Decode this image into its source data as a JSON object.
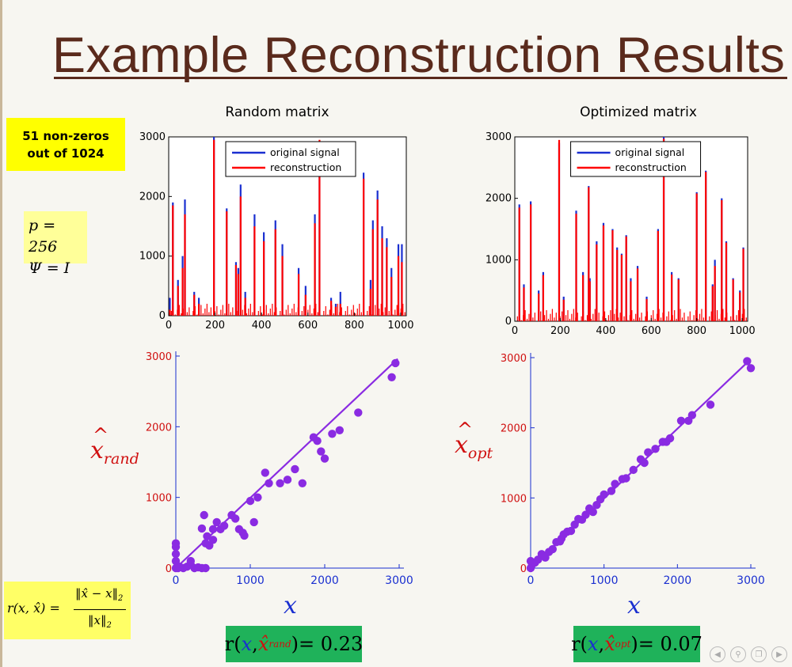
{
  "slide": {
    "title": "Example Reconstruction Results",
    "note_line1": "51 non-zeros",
    "note_line2": "out of 1024",
    "param_p": "p = 256",
    "param_psi": "Ψ = I",
    "formula_lhs": "r(x, x̂) =",
    "formula_num": "‖x̂ − x‖",
    "formula_num_sub": "2",
    "formula_den": "‖x‖",
    "formula_den_sub": "2",
    "x_axis_letter": "x",
    "ylab_rand_base": "x",
    "ylab_rand_sub": "rand",
    "ylab_opt_base": "x",
    "ylab_opt_sub": "opt",
    "r_rand": {
      "r": "r",
      "x": "x",
      "xhat": "x̂",
      "sub": "rand",
      "value": "= 0.23"
    },
    "r_opt": {
      "r": "r",
      "x": "x",
      "xhat": "x̂",
      "sub": "opt",
      "value": "= 0.07"
    }
  },
  "colors": {
    "title": "#5a2a1c",
    "original": "#1a2fd0",
    "reconstruction": "#ff0000",
    "scatter": "#8a2be2",
    "scatter_axis": "#1a2fd0",
    "scatter_tick": "#d01010"
  },
  "chart_data": [
    {
      "id": "random_signal",
      "type": "bar",
      "title": "Random matrix",
      "xlim": [
        0,
        1024
      ],
      "ylim": [
        0,
        3000
      ],
      "xticks": [
        "0",
        "200",
        "400",
        "600",
        "800",
        "1000"
      ],
      "yticks": [
        "0",
        "1000",
        "2000",
        "3000"
      ],
      "legend": [
        "original signal",
        "reconstruction"
      ],
      "legend_position": "top",
      "series": [
        {
          "name": "original signal",
          "x": [
            5,
            18,
            40,
            60,
            70,
            110,
            130,
            195,
            250,
            290,
            300,
            310,
            330,
            370,
            410,
            460,
            490,
            560,
            590,
            630,
            650,
            700,
            720,
            740,
            840,
            870,
            880,
            900,
            920,
            940,
            960,
            990,
            1005
          ],
          "values": [
            300,
            1900,
            600,
            1000,
            1950,
            400,
            300,
            3000,
            1800,
            900,
            800,
            2200,
            400,
            1700,
            1400,
            1600,
            1200,
            800,
            500,
            1700,
            2900,
            300,
            200,
            400,
            2400,
            600,
            1600,
            2100,
            1500,
            1300,
            800,
            1200,
            1200
          ]
        },
        {
          "name": "reconstruction",
          "x": [
            5,
            18,
            40,
            60,
            70,
            110,
            130,
            195,
            250,
            290,
            300,
            310,
            330,
            370,
            410,
            460,
            490,
            560,
            590,
            630,
            650,
            700,
            720,
            740,
            840,
            870,
            880,
            900,
            920,
            940,
            960,
            990,
            1005
          ],
          "values": [
            100,
            1850,
            500,
            800,
            1700,
            350,
            200,
            2950,
            1750,
            850,
            700,
            2000,
            300,
            1500,
            1250,
            1450,
            1000,
            700,
            350,
            1550,
            2950,
            250,
            150,
            200,
            2300,
            450,
            1450,
            1950,
            1300,
            1150,
            650,
            1000,
            900
          ]
        }
      ]
    },
    {
      "id": "optimized_signal",
      "type": "bar",
      "title": "Optimized matrix",
      "xlim": [
        0,
        1024
      ],
      "ylim": [
        0,
        3000
      ],
      "xticks": [
        "0",
        "200",
        "400",
        "600",
        "800",
        "1000"
      ],
      "yticks": [
        "0",
        "1000",
        "2000",
        "3000"
      ],
      "legend": [
        "original signal",
        "reconstruction"
      ],
      "legend_position": "top",
      "series": [
        {
          "name": "original signal",
          "x": [
            20,
            40,
            70,
            105,
            125,
            195,
            215,
            270,
            300,
            325,
            330,
            360,
            390,
            430,
            450,
            470,
            490,
            510,
            540,
            580,
            630,
            655,
            690,
            720,
            800,
            840,
            870,
            880,
            910,
            930,
            960,
            990,
            1005
          ],
          "values": [
            1900,
            600,
            1950,
            500,
            800,
            2900,
            400,
            1800,
            800,
            2200,
            700,
            1300,
            1600,
            1500,
            1200,
            1100,
            1400,
            700,
            900,
            400,
            1500,
            3000,
            800,
            700,
            2100,
            2450,
            600,
            1000,
            2000,
            1300,
            700,
            500,
            1200
          ]
        },
        {
          "name": "reconstruction",
          "x": [
            20,
            40,
            70,
            105,
            125,
            195,
            215,
            270,
            300,
            325,
            330,
            360,
            390,
            430,
            450,
            470,
            490,
            510,
            540,
            580,
            630,
            655,
            690,
            720,
            800,
            840,
            870,
            880,
            910,
            930,
            960,
            990,
            1005
          ],
          "values": [
            1850,
            550,
            1900,
            450,
            750,
            2950,
            350,
            1750,
            750,
            2180,
            650,
            1250,
            1560,
            1480,
            1160,
            1080,
            1380,
            650,
            860,
            360,
            1470,
            2970,
            760,
            680,
            2080,
            2430,
            570,
            900,
            1970,
            1280,
            680,
            470,
            1180
          ]
        }
      ]
    },
    {
      "id": "random_scatter",
      "type": "scatter",
      "xlim": [
        0,
        3000
      ],
      "ylim": [
        0,
        3000
      ],
      "xticks": [
        "0",
        "1000",
        "2000",
        "3000"
      ],
      "yticks": [
        "0",
        "1000",
        "2000",
        "3000"
      ],
      "fit_line": [
        [
          0,
          0
        ],
        [
          2980,
          2960
        ]
      ],
      "points": [
        [
          0,
          0
        ],
        [
          0,
          100
        ],
        [
          0,
          200
        ],
        [
          0,
          300
        ],
        [
          0,
          350
        ],
        [
          30,
          0
        ],
        [
          50,
          20
        ],
        [
          100,
          0
        ],
        [
          150,
          20
        ],
        [
          200,
          50
        ],
        [
          250,
          0
        ],
        [
          300,
          10
        ],
        [
          350,
          0
        ],
        [
          400,
          0
        ],
        [
          200,
          100
        ],
        [
          350,
          560
        ],
        [
          380,
          750
        ],
        [
          400,
          350
        ],
        [
          420,
          450
        ],
        [
          450,
          320
        ],
        [
          500,
          400
        ],
        [
          500,
          550
        ],
        [
          550,
          650
        ],
        [
          600,
          550
        ],
        [
          650,
          600
        ],
        [
          750,
          750
        ],
        [
          800,
          700
        ],
        [
          850,
          550
        ],
        [
          900,
          500
        ],
        [
          920,
          460
        ],
        [
          1000,
          950
        ],
        [
          1050,
          650
        ],
        [
          1100,
          1000
        ],
        [
          1200,
          1350
        ],
        [
          1250,
          1200
        ],
        [
          1400,
          1200
        ],
        [
          1500,
          1250
        ],
        [
          1600,
          1400
        ],
        [
          1700,
          1200
        ],
        [
          1850,
          1850
        ],
        [
          1900,
          1800
        ],
        [
          1950,
          1650
        ],
        [
          2000,
          1550
        ],
        [
          2100,
          1900
        ],
        [
          2200,
          1950
        ],
        [
          2450,
          2200
        ],
        [
          2900,
          2700
        ],
        [
          2950,
          2900
        ]
      ]
    },
    {
      "id": "optimized_scatter",
      "type": "scatter",
      "xlim": [
        0,
        3000
      ],
      "ylim": [
        0,
        3000
      ],
      "xticks": [
        "0",
        "1000",
        "2000",
        "3000"
      ],
      "yticks": [
        "0",
        "1000",
        "2000",
        "3000"
      ],
      "fit_line": [
        [
          0,
          0
        ],
        [
          2980,
          2960
        ]
      ],
      "points": [
        [
          0,
          0
        ],
        [
          0,
          100
        ],
        [
          20,
          50
        ],
        [
          60,
          80
        ],
        [
          100,
          120
        ],
        [
          150,
          200
        ],
        [
          200,
          150
        ],
        [
          250,
          230
        ],
        [
          300,
          270
        ],
        [
          350,
          370
        ],
        [
          400,
          380
        ],
        [
          420,
          420
        ],
        [
          450,
          480
        ],
        [
          500,
          520
        ],
        [
          550,
          530
        ],
        [
          600,
          620
        ],
        [
          650,
          700
        ],
        [
          700,
          690
        ],
        [
          750,
          760
        ],
        [
          800,
          850
        ],
        [
          850,
          800
        ],
        [
          900,
          900
        ],
        [
          950,
          980
        ],
        [
          1000,
          1050
        ],
        [
          1100,
          1100
        ],
        [
          1150,
          1200
        ],
        [
          1250,
          1270
        ],
        [
          1300,
          1280
        ],
        [
          1400,
          1400
        ],
        [
          1500,
          1550
        ],
        [
          1550,
          1500
        ],
        [
          1600,
          1650
        ],
        [
          1700,
          1700
        ],
        [
          1800,
          1800
        ],
        [
          1850,
          1800
        ],
        [
          1900,
          1850
        ],
        [
          2050,
          2100
        ],
        [
          2150,
          2100
        ],
        [
          2200,
          2180
        ],
        [
          2450,
          2330
        ],
        [
          2950,
          2950
        ],
        [
          3000,
          2850
        ]
      ]
    }
  ]
}
